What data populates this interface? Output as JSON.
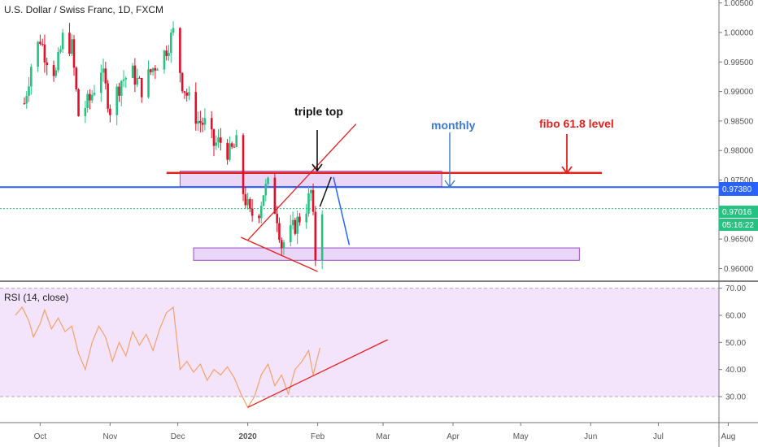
{
  "header": {
    "title": "U.S. Dollar / Swiss Franc, 1D, FXCM"
  },
  "rsi_header": {
    "title": "RSI (14, close)"
  },
  "annotations": {
    "triple_top": "triple top",
    "monthly": "monthly",
    "fibo": "fibo 61.8 level"
  },
  "price_tags": {
    "blue_level": "0.97380",
    "current": "0.97016",
    "countdown": "05:16:22"
  },
  "colors": {
    "up": "#26c281",
    "down": "#e0102a",
    "blue": "#2962ff",
    "red": "#e5201d",
    "zone": "#d8b4f0",
    "rsi_bg": "#f3e3fb",
    "rsi_line": "#f5a26a"
  },
  "chart_data": [
    {
      "type": "candlestick",
      "title": "U.S. Dollar / Swiss Franc, 1D, FXCM",
      "x_ticks": [
        "Oct",
        "Nov",
        "Dec",
        "2020",
        "Feb",
        "Mar",
        "Apr",
        "May",
        "Jun",
        "Jul",
        "Aug"
      ],
      "y_ticks": [
        "1.00500",
        "1.00000",
        "0.99500",
        "0.99000",
        "0.98500",
        "0.98000",
        "0.97500",
        "0.97000",
        "0.96500",
        "0.96000"
      ],
      "ylim": [
        0.958,
        1.0055
      ],
      "close_path": [
        [
          "2019-09-24",
          0.988
        ],
        [
          "2019-09-27",
          0.9945
        ],
        [
          "2019-10-01",
          0.999
        ],
        [
          "2019-10-03",
          0.9965
        ],
        [
          "2019-10-08",
          0.993
        ],
        [
          "2019-10-11",
          0.999
        ],
        [
          "2019-10-15",
          0.9975
        ],
        [
          "2019-10-18",
          0.986
        ],
        [
          "2019-10-23",
          0.9885
        ],
        [
          "2019-10-28",
          0.994
        ],
        [
          "2019-11-01",
          0.987
        ],
        [
          "2019-11-06",
          0.992
        ],
        [
          "2019-11-11",
          0.993
        ],
        [
          "2019-11-15",
          0.9905
        ],
        [
          "2019-11-20",
          0.994
        ],
        [
          "2019-11-25",
          0.9965
        ],
        [
          "2019-11-29",
          1.0
        ],
        [
          "2019-12-03",
          0.9915
        ],
        [
          "2019-12-06",
          0.9885
        ],
        [
          "2019-12-10",
          0.985
        ],
        [
          "2019-12-13",
          0.9845
        ],
        [
          "2019-12-17",
          0.981
        ],
        [
          "2019-12-20",
          0.9815
        ],
        [
          "2019-12-24",
          0.9795
        ],
        [
          "2019-12-27",
          0.981
        ],
        [
          "2019-12-30",
          0.973
        ],
        [
          "2020-01-02",
          0.969
        ],
        [
          "2020-01-06",
          0.97
        ],
        [
          "2020-01-08",
          0.973
        ],
        [
          "2020-01-10",
          0.974
        ],
        [
          "2020-01-14",
          0.969
        ],
        [
          "2020-01-16",
          0.964
        ],
        [
          "2020-01-20",
          0.966
        ],
        [
          "2020-01-23",
          0.968
        ],
        [
          "2020-01-27",
          0.9705
        ],
        [
          "2020-01-29",
          0.973
        ],
        [
          "2020-01-30",
          0.968
        ],
        [
          "2020-01-31",
          0.962
        ],
        [
          "2020-02-03",
          0.9705
        ]
      ],
      "levels": [
        {
          "name": "0.97380",
          "y": 0.9738
        },
        {
          "name": "0.97016",
          "y": 0.97016
        }
      ]
    },
    {
      "type": "line",
      "title": "RSI (14, close)",
      "y_ticks": [
        "70.00",
        "60.00",
        "50.00",
        "40.00",
        "30.00"
      ],
      "ylim": [
        21,
        72
      ],
      "band": [
        30,
        70
      ],
      "series": [
        {
          "values": [
            [
              "2019-09-20",
              60
            ],
            [
              "2019-09-23",
              63
            ],
            [
              "2019-09-26",
              58
            ],
            [
              "2019-09-28",
              52
            ],
            [
              "2019-10-01",
              57
            ],
            [
              "2019-10-03",
              62
            ],
            [
              "2019-10-06",
              55
            ],
            [
              "2019-10-09",
              59
            ],
            [
              "2019-10-12",
              54
            ],
            [
              "2019-10-15",
              56
            ],
            [
              "2019-10-18",
              46
            ],
            [
              "2019-10-21",
              40
            ],
            [
              "2019-10-24",
              50
            ],
            [
              "2019-10-27",
              56
            ],
            [
              "2019-10-30",
              52
            ],
            [
              "2019-11-02",
              43
            ],
            [
              "2019-11-05",
              50
            ],
            [
              "2019-11-08",
              45
            ],
            [
              "2019-11-11",
              54
            ],
            [
              "2019-11-14",
              49
            ],
            [
              "2019-11-17",
              53
            ],
            [
              "2019-11-20",
              47
            ],
            [
              "2019-11-23",
              55
            ],
            [
              "2019-11-26",
              61
            ],
            [
              "2019-11-29",
              63
            ],
            [
              "2019-12-02",
              40
            ],
            [
              "2019-12-05",
              43
            ],
            [
              "2019-12-08",
              39
            ],
            [
              "2019-12-11",
              42
            ],
            [
              "2019-12-14",
              36
            ],
            [
              "2019-12-17",
              40
            ],
            [
              "2019-12-20",
              38
            ],
            [
              "2019-12-23",
              41
            ],
            [
              "2019-12-26",
              37
            ],
            [
              "2019-12-29",
              31
            ],
            [
              "2020-01-01",
              26
            ],
            [
              "2020-01-04",
              30
            ],
            [
              "2020-01-07",
              38
            ],
            [
              "2020-01-10",
              42
            ],
            [
              "2020-01-13",
              34
            ],
            [
              "2020-01-16",
              38
            ],
            [
              "2020-01-19",
              31
            ],
            [
              "2020-01-22",
              40
            ],
            [
              "2020-01-25",
              43
            ],
            [
              "2020-01-28",
              47
            ],
            [
              "2020-01-30",
              38
            ],
            [
              "2020-02-02",
              48
            ]
          ]
        }
      ]
    }
  ]
}
